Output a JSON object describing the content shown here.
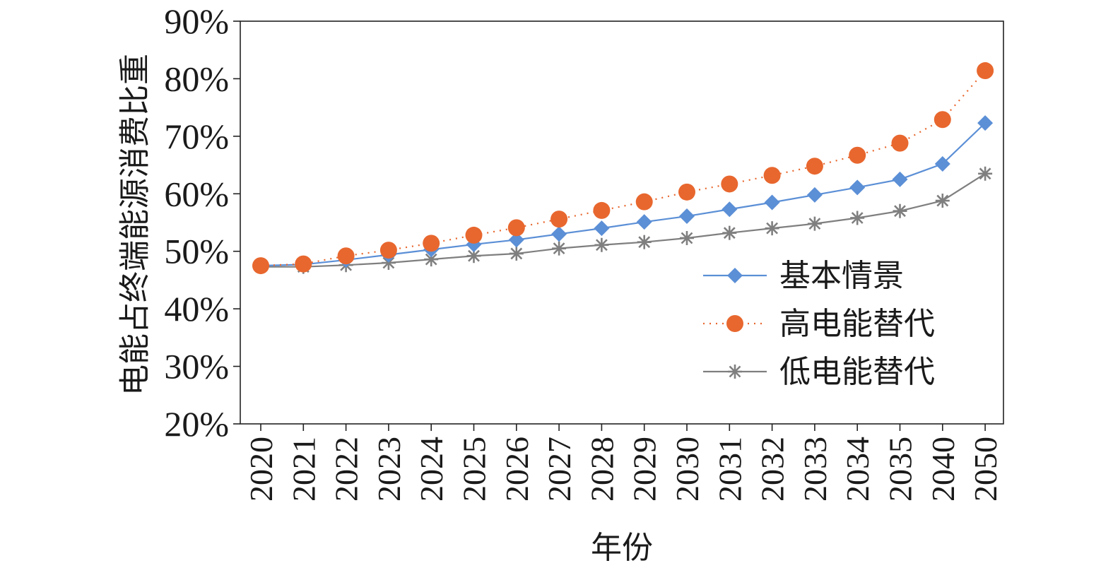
{
  "chart_data": {
    "type": "line",
    "xlabel": "年份",
    "ylabel": "电能占终端能源消费比重",
    "ylim": [
      0.2,
      0.9
    ],
    "ytick_values": [
      0.2,
      0.3,
      0.4,
      0.5,
      0.6,
      0.7,
      0.8,
      0.9
    ],
    "ytick_labels": [
      "20%",
      "30%",
      "40%",
      "50%",
      "60%",
      "70%",
      "80%",
      "90%"
    ],
    "categories": [
      "2020",
      "2021",
      "2022",
      "2023",
      "2024",
      "2025",
      "2026",
      "2027",
      "2028",
      "2029",
      "2030",
      "2031",
      "2032",
      "2033",
      "2034",
      "2035",
      "2040",
      "2050"
    ],
    "grid": false,
    "legend_position": "lower-right",
    "series": [
      {
        "name": "基本情景",
        "color": "#5b8fd6",
        "line_style": "solid",
        "marker": "diamond",
        "values": [
          0.475,
          0.477,
          0.485,
          0.494,
          0.503,
          0.512,
          0.52,
          0.53,
          0.54,
          0.551,
          0.561,
          0.573,
          0.585,
          0.598,
          0.611,
          0.625,
          0.652,
          0.723
        ]
      },
      {
        "name": "高电能替代",
        "color": "#e8672e",
        "line_style": "dotted",
        "marker": "circle",
        "values": [
          0.475,
          0.478,
          0.492,
          0.502,
          0.514,
          0.528,
          0.541,
          0.556,
          0.571,
          0.586,
          0.603,
          0.617,
          0.632,
          0.648,
          0.667,
          0.688,
          0.729,
          0.814
        ]
      },
      {
        "name": "低电能替代",
        "color": "#7f7f7f",
        "line_style": "solid",
        "marker": "asterisk",
        "values": [
          0.473,
          0.473,
          0.476,
          0.48,
          0.486,
          0.492,
          0.496,
          0.505,
          0.511,
          0.516,
          0.523,
          0.532,
          0.54,
          0.548,
          0.558,
          0.57,
          0.588,
          0.635
        ]
      }
    ]
  }
}
